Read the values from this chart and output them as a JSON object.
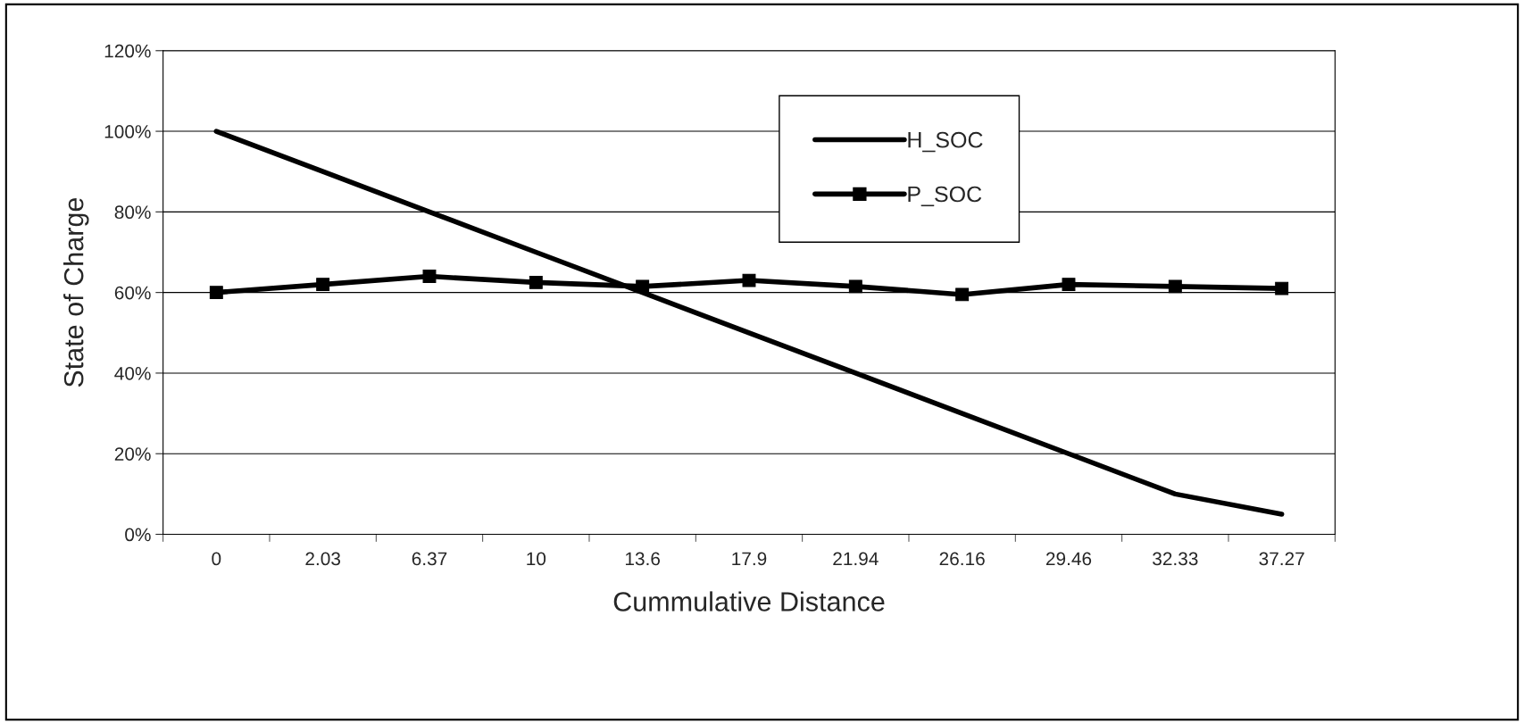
{
  "chart_data": {
    "type": "line",
    "xlabel": "Cummulative Distance",
    "ylabel": "State of Charge",
    "categories": [
      "0",
      "2.03",
      "6.37",
      "10",
      "13.6",
      "17.9",
      "21.94",
      "26.16",
      "29.46",
      "32.33",
      "37.27"
    ],
    "series": [
      {
        "name": "H_SOC",
        "color": "#000000",
        "marker": "none",
        "values": [
          100,
          90,
          80,
          70,
          60,
          50,
          40,
          30,
          20,
          10,
          5
        ]
      },
      {
        "name": "P_SOC",
        "color": "#000000",
        "marker": "square",
        "values": [
          60,
          62,
          64,
          62.5,
          61.5,
          63,
          61.5,
          59.5,
          62,
          61.5,
          61
        ]
      }
    ],
    "ylim": [
      0,
      120
    ],
    "yticks": [
      {
        "value": 0,
        "label": "0%"
      },
      {
        "value": 20,
        "label": "20%"
      },
      {
        "value": 40,
        "label": "40%"
      },
      {
        "value": 60,
        "label": "60%"
      },
      {
        "value": 80,
        "label": "80%"
      },
      {
        "value": 100,
        "label": "100%"
      },
      {
        "value": 120,
        "label": "120%"
      }
    ],
    "grid": "y",
    "legend": "top right",
    "line_style": "solid"
  }
}
